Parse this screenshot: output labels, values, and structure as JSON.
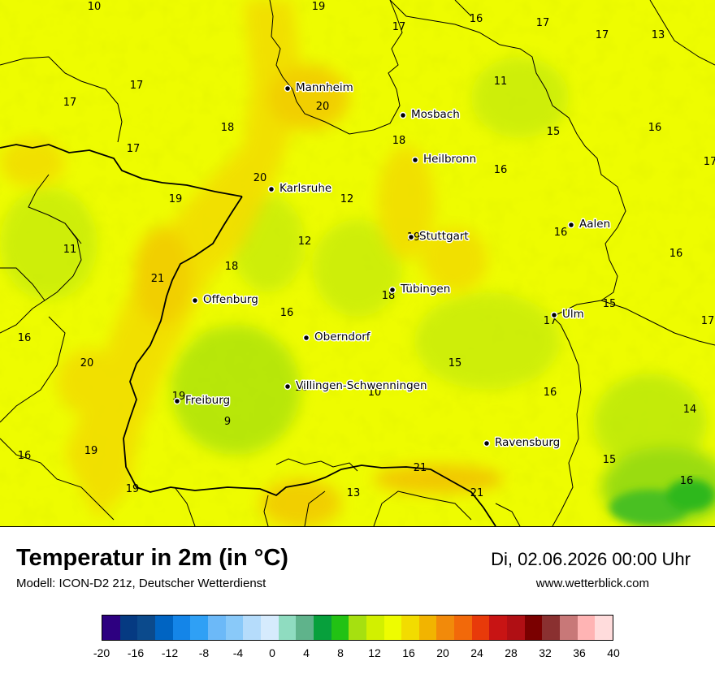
{
  "map": {
    "cities": [
      {
        "name": "Mannheim",
        "id": "mannheim"
      },
      {
        "name": "Mosbach",
        "id": "mosbach"
      },
      {
        "name": "Heilbronn",
        "id": "heilbronn"
      },
      {
        "name": "Karlsruhe",
        "id": "karlsruhe"
      },
      {
        "name": "Stuttgart",
        "id": "stuttgart"
      },
      {
        "name": "Aalen",
        "id": "aalen"
      },
      {
        "name": "Tübingen",
        "id": "tuebingen"
      },
      {
        "name": "Offenburg",
        "id": "offenburg"
      },
      {
        "name": "Ulm",
        "id": "ulm"
      },
      {
        "name": "Oberndorf",
        "id": "oberndorf"
      },
      {
        "name": "Villingen-Schwenningen",
        "id": "villingen"
      },
      {
        "name": "Freiburg",
        "id": "freiburg"
      },
      {
        "name": "Ravensburg",
        "id": "ravensburg"
      }
    ],
    "temperatures": [
      "10",
      "19",
      "17",
      "16",
      "17",
      "17",
      "13",
      "17",
      "17",
      "11",
      "20",
      "18",
      "15",
      "16",
      "17",
      "18",
      "20",
      "19",
      "16",
      "17",
      "12",
      "11",
      "12",
      "19",
      "16",
      "16",
      "18",
      "21",
      "18",
      "16",
      "15",
      "16",
      "17",
      "17",
      "20",
      "15",
      "19",
      "10",
      "10",
      "16",
      "14",
      "9",
      "16",
      "19",
      "21",
      "15",
      "16",
      "19",
      "13",
      "21"
    ]
  },
  "footer": {
    "title": "Temperatur in 2m (in °C)",
    "model": "Modell: ICON-D2 21z, Deutscher Wetterdienst",
    "date": "Di, 02.06.2026 00:00 Uhr",
    "website": "www.wetterblick.com"
  },
  "legend": {
    "colors": [
      "#2d0080",
      "#053a82",
      "#0b4a8c",
      "#0064c2",
      "#1485e8",
      "#2fa0f5",
      "#6cb9f8",
      "#89c9f9",
      "#b5dcfb",
      "#d6ebfd",
      "#8fdcc0",
      "#5fb38b",
      "#07a03c",
      "#22c214",
      "#a6e010",
      "#d2f000",
      "#eefc00",
      "#f2dc00",
      "#f2b400",
      "#f28a0a",
      "#f2690a",
      "#e83a0a",
      "#c81414",
      "#b00f14",
      "#7a0000",
      "#8a3030",
      "#c87878",
      "#ffb4b4",
      "#ffdcdc"
    ],
    "ticks": [
      "-20",
      "-16",
      "-12",
      "-8",
      "-4",
      "0",
      "4",
      "8",
      "12",
      "16",
      "20",
      "24",
      "28",
      "32",
      "36",
      "40"
    ]
  }
}
